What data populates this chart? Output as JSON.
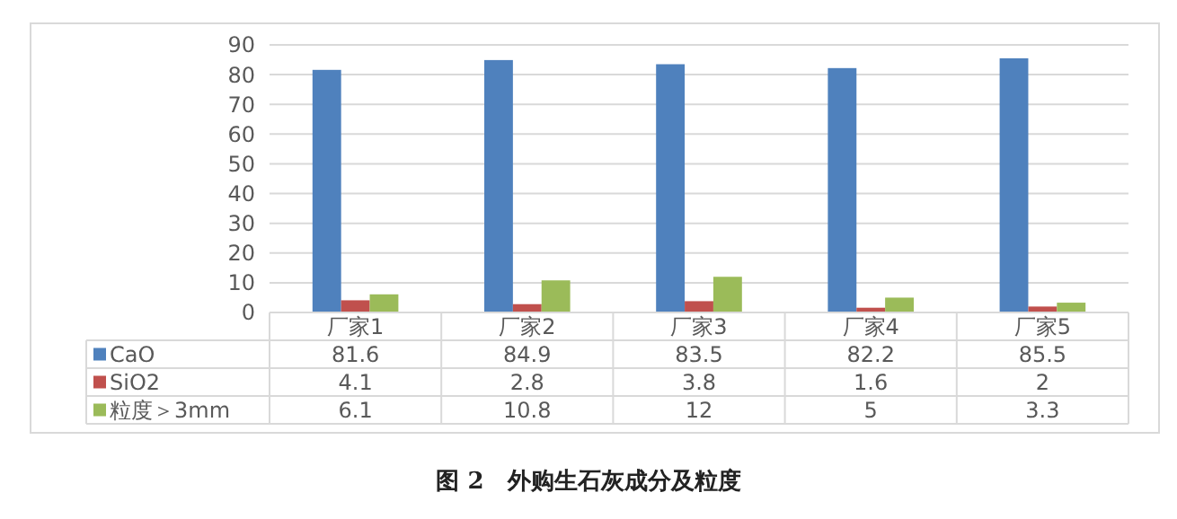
{
  "chart_data": {
    "type": "bar",
    "title": "图 2　外购生石灰成分及粒度",
    "categories": [
      "厂家1",
      "厂家2",
      "厂家3",
      "厂家4",
      "厂家5"
    ],
    "series": [
      {
        "name": "CaO",
        "color": "#4f81bd",
        "values": [
          81.6,
          84.9,
          83.5,
          82.2,
          85.5
        ]
      },
      {
        "name": "SiO2",
        "color": "#c0504d",
        "values": [
          4.1,
          2.8,
          3.8,
          1.6,
          2
        ]
      },
      {
        "name": "粒度＞3mm",
        "color": "#9bbb59",
        "values": [
          6.1,
          10.8,
          12,
          5,
          3.3
        ]
      }
    ],
    "ylim": [
      0,
      90
    ],
    "yticks": [
      0,
      10,
      20,
      30,
      40,
      50,
      60,
      70,
      80,
      90
    ],
    "grid": "y",
    "legend": "bottom left",
    "data_labels": true
  }
}
